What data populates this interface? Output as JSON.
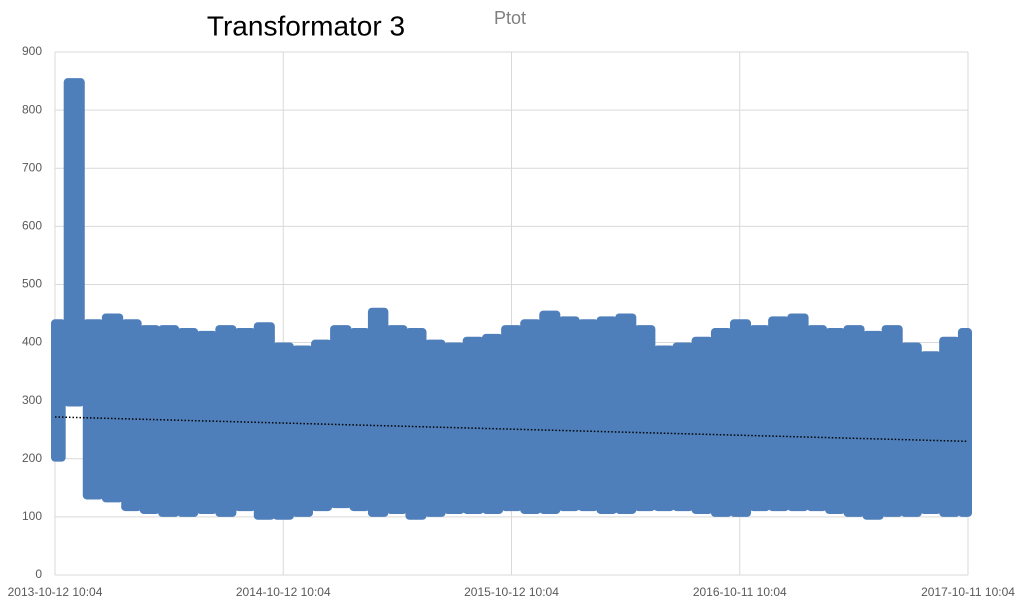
{
  "chart_data": {
    "type": "range",
    "title": "Transformator 3",
    "series": [
      {
        "name": "Ptot",
        "color": "#4e7fbb",
        "x": [
          "2013-10-12 10:04",
          "2013-11-12 10:04",
          "2013-12-12 10:04",
          "2014-01-12 10:04",
          "2014-02-12 10:04",
          "2014-03-12 10:04",
          "2014-04-12 10:04",
          "2014-05-12 10:04",
          "2014-06-12 10:04",
          "2014-07-12 10:04",
          "2014-08-12 10:04",
          "2014-09-12 10:04",
          "2014-10-12 10:04",
          "2014-11-12 10:04",
          "2014-12-12 10:04",
          "2015-01-12 10:04",
          "2015-02-12 10:04",
          "2015-03-12 10:04",
          "2015-04-12 10:04",
          "2015-05-12 10:04",
          "2015-06-12 10:04",
          "2015-07-12 10:04",
          "2015-08-12 10:04",
          "2015-09-12 10:04",
          "2015-10-12 10:04",
          "2015-11-12 10:04",
          "2015-12-12 10:04",
          "2016-01-12 10:04",
          "2016-02-12 10:04",
          "2016-03-12 10:04",
          "2016-04-12 10:04",
          "2016-05-12 10:04",
          "2016-06-12 10:04",
          "2016-07-12 10:04",
          "2016-08-12 10:04",
          "2016-09-12 10:04",
          "2016-10-12 10:04",
          "2016-11-12 10:04",
          "2016-12-12 10:04",
          "2017-01-12 10:04",
          "2017-02-12 10:04",
          "2017-03-12 10:04",
          "2017-04-12 10:04",
          "2017-05-12 10:04",
          "2017-06-12 10:04",
          "2017-07-12 10:04",
          "2017-08-12 10:04",
          "2017-09-12 10:04",
          "2017-10-11 10:04"
        ],
        "low": [
          195,
          290,
          130,
          125,
          110,
          105,
          100,
          100,
          105,
          100,
          110,
          95,
          95,
          100,
          110,
          115,
          110,
          100,
          105,
          95,
          100,
          105,
          105,
          105,
          110,
          105,
          105,
          110,
          110,
          105,
          105,
          110,
          110,
          110,
          105,
          100,
          100,
          110,
          110,
          110,
          110,
          105,
          100,
          95,
          100,
          100,
          105,
          100,
          100
        ],
        "high": [
          440,
          855,
          440,
          450,
          440,
          430,
          430,
          425,
          420,
          430,
          425,
          435,
          400,
          395,
          405,
          430,
          425,
          460,
          430,
          425,
          405,
          400,
          410,
          415,
          430,
          440,
          455,
          445,
          440,
          445,
          450,
          430,
          395,
          400,
          410,
          425,
          440,
          430,
          445,
          450,
          430,
          425,
          430,
          420,
          430,
          400,
          385,
          410,
          425
        ]
      }
    ],
    "trendline": {
      "x": [
        "2013-10-12 10:04",
        "2017-10-11 10:04"
      ],
      "values": [
        272,
        230
      ],
      "color": "#000000"
    },
    "xlim": [
      "2013-10-12 10:04",
      "2017-10-11 10:04"
    ],
    "xticks": [
      "2013-10-12 10:04",
      "2014-10-12 10:04",
      "2015-10-12 10:04",
      "2016-10-11 10:04",
      "2017-10-11 10:04"
    ],
    "ylim": [
      0,
      900
    ],
    "yticks": [
      0,
      100,
      200,
      300,
      400,
      500,
      600,
      700,
      800,
      900
    ],
    "grid": true
  }
}
